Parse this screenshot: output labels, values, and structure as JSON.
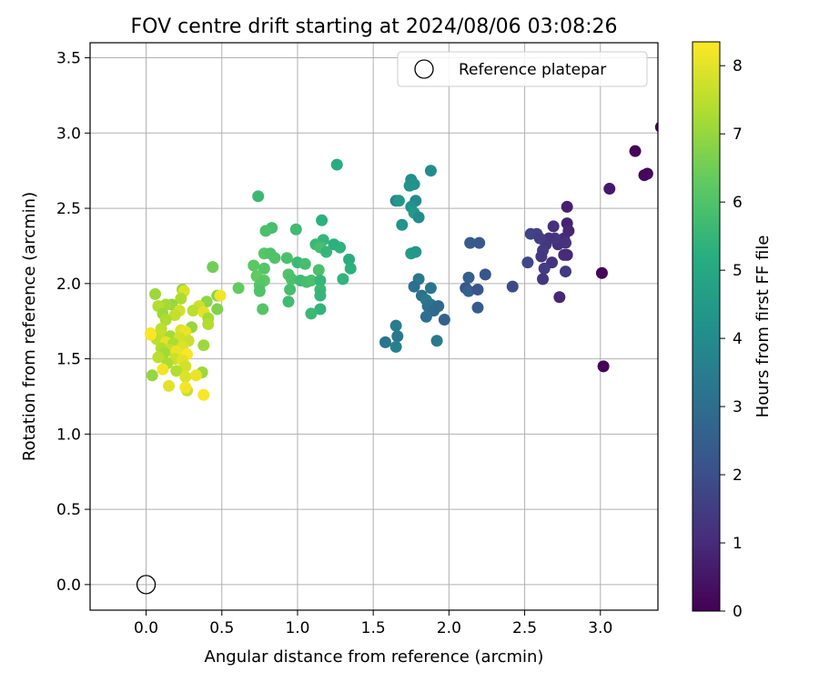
{
  "chart_data": {
    "type": "scatter",
    "title": "FOV centre drift starting at 2024/08/06 03:08:26",
    "xlabel": "Angular distance from reference (arcmin)",
    "ylabel": "Rotation from reference (arcmin)",
    "xlim": [
      -0.37,
      3.38
    ],
    "ylim": [
      -0.17,
      3.6
    ],
    "xticks": [
      0.0,
      0.5,
      1.0,
      1.5,
      2.0,
      2.5,
      3.0
    ],
    "yticks": [
      0.0,
      0.5,
      1.0,
      1.5,
      2.0,
      2.5,
      3.0,
      3.5
    ],
    "grid": true,
    "legend": {
      "placement": "top-right",
      "entries": [
        {
          "label": "Reference platepar",
          "marker": "open-circle"
        }
      ]
    },
    "reference_point": {
      "x": 0.0,
      "y": 0.0
    },
    "colorbar": {
      "label": "Hours from first FF file",
      "colormap": "viridis",
      "range": [
        0,
        8.35
      ],
      "ticks": [
        0,
        1,
        2,
        3,
        4,
        5,
        6,
        7,
        8
      ]
    },
    "points": [
      {
        "x": 3.4,
        "y": 3.04,
        "c": 0.05
      },
      {
        "x": 3.23,
        "y": 2.88,
        "c": 0.12
      },
      {
        "x": 3.29,
        "y": 2.72,
        "c": 0.15
      },
      {
        "x": 3.31,
        "y": 2.73,
        "c": 0.18
      },
      {
        "x": 3.06,
        "y": 2.63,
        "c": 0.55
      },
      {
        "x": 3.01,
        "y": 2.07,
        "c": 0.1
      },
      {
        "x": 3.02,
        "y": 1.45,
        "c": 0.1
      },
      {
        "x": 2.78,
        "y": 2.51,
        "c": 0.7
      },
      {
        "x": 2.78,
        "y": 2.4,
        "c": 0.8
      },
      {
        "x": 2.79,
        "y": 2.35,
        "c": 0.9
      },
      {
        "x": 2.76,
        "y": 2.3,
        "c": 1.0
      },
      {
        "x": 2.72,
        "y": 2.26,
        "c": 1.1
      },
      {
        "x": 2.78,
        "y": 2.19,
        "c": 0.9
      },
      {
        "x": 2.76,
        "y": 2.19,
        "c": 1.0
      },
      {
        "x": 2.77,
        "y": 2.27,
        "c": 1.2
      },
      {
        "x": 2.69,
        "y": 2.38,
        "c": 1.1
      },
      {
        "x": 2.7,
        "y": 2.3,
        "c": 1.3
      },
      {
        "x": 2.66,
        "y": 2.3,
        "c": 1.2
      },
      {
        "x": 2.64,
        "y": 2.26,
        "c": 1.3
      },
      {
        "x": 2.62,
        "y": 2.22,
        "c": 1.4
      },
      {
        "x": 2.61,
        "y": 2.18,
        "c": 1.3
      },
      {
        "x": 2.68,
        "y": 2.14,
        "c": 1.2
      },
      {
        "x": 2.63,
        "y": 2.1,
        "c": 1.5
      },
      {
        "x": 2.77,
        "y": 2.08,
        "c": 1.4
      },
      {
        "x": 2.62,
        "y": 2.03,
        "c": 1.3
      },
      {
        "x": 2.73,
        "y": 1.91,
        "c": 0.9
      },
      {
        "x": 2.58,
        "y": 2.33,
        "c": 1.6
      },
      {
        "x": 2.54,
        "y": 2.33,
        "c": 1.7
      },
      {
        "x": 2.6,
        "y": 2.3,
        "c": 1.5
      },
      {
        "x": 2.52,
        "y": 2.14,
        "c": 1.8
      },
      {
        "x": 2.42,
        "y": 1.98,
        "c": 1.9
      },
      {
        "x": 2.14,
        "y": 2.27,
        "c": 2.4
      },
      {
        "x": 2.2,
        "y": 2.27,
        "c": 2.3
      },
      {
        "x": 2.24,
        "y": 2.06,
        "c": 2.2
      },
      {
        "x": 2.13,
        "y": 2.04,
        "c": 2.5
      },
      {
        "x": 2.11,
        "y": 1.97,
        "c": 2.1
      },
      {
        "x": 2.13,
        "y": 1.95,
        "c": 2.6
      },
      {
        "x": 2.19,
        "y": 1.96,
        "c": 2.2
      },
      {
        "x": 2.19,
        "y": 1.84,
        "c": 2.4
      },
      {
        "x": 1.88,
        "y": 2.75,
        "c": 4.0
      },
      {
        "x": 1.75,
        "y": 2.69,
        "c": 4.1
      },
      {
        "x": 1.77,
        "y": 2.66,
        "c": 4.2
      },
      {
        "x": 1.74,
        "y": 2.65,
        "c": 4.3
      },
      {
        "x": 1.65,
        "y": 2.55,
        "c": 3.8
      },
      {
        "x": 1.67,
        "y": 2.55,
        "c": 4.4
      },
      {
        "x": 1.78,
        "y": 2.55,
        "c": 3.9
      },
      {
        "x": 1.75,
        "y": 2.51,
        "c": 4.2
      },
      {
        "x": 1.77,
        "y": 2.47,
        "c": 4.5
      },
      {
        "x": 1.8,
        "y": 2.44,
        "c": 4.0
      },
      {
        "x": 1.69,
        "y": 2.39,
        "c": 4.3
      },
      {
        "x": 1.75,
        "y": 2.2,
        "c": 4.6
      },
      {
        "x": 1.78,
        "y": 2.21,
        "c": 4.4
      },
      {
        "x": 1.8,
        "y": 2.03,
        "c": 3.3
      },
      {
        "x": 1.77,
        "y": 1.98,
        "c": 3.0
      },
      {
        "x": 1.88,
        "y": 1.97,
        "c": 3.2
      },
      {
        "x": 1.82,
        "y": 1.92,
        "c": 3.1
      },
      {
        "x": 1.85,
        "y": 1.89,
        "c": 3.4
      },
      {
        "x": 1.88,
        "y": 1.86,
        "c": 3.3
      },
      {
        "x": 1.86,
        "y": 1.85,
        "c": 3.1
      },
      {
        "x": 1.9,
        "y": 1.82,
        "c": 2.9
      },
      {
        "x": 1.93,
        "y": 1.85,
        "c": 2.8
      },
      {
        "x": 1.85,
        "y": 1.78,
        "c": 3.0
      },
      {
        "x": 1.97,
        "y": 1.76,
        "c": 2.6
      },
      {
        "x": 1.92,
        "y": 1.62,
        "c": 3.4
      },
      {
        "x": 1.65,
        "y": 1.72,
        "c": 3.5
      },
      {
        "x": 1.66,
        "y": 1.65,
        "c": 3.3
      },
      {
        "x": 1.58,
        "y": 1.61,
        "c": 3.2
      },
      {
        "x": 1.65,
        "y": 1.58,
        "c": 3.6
      },
      {
        "x": 1.26,
        "y": 2.79,
        "c": 5.2
      },
      {
        "x": 0.74,
        "y": 2.58,
        "c": 5.6
      },
      {
        "x": 1.16,
        "y": 2.42,
        "c": 5.3
      },
      {
        "x": 0.83,
        "y": 2.37,
        "c": 5.8
      },
      {
        "x": 0.79,
        "y": 2.35,
        "c": 5.9
      },
      {
        "x": 0.99,
        "y": 2.36,
        "c": 5.7
      },
      {
        "x": 1.17,
        "y": 2.29,
        "c": 5.5
      },
      {
        "x": 1.28,
        "y": 2.24,
        "c": 5.4
      },
      {
        "x": 1.12,
        "y": 2.26,
        "c": 5.6
      },
      {
        "x": 1.24,
        "y": 2.26,
        "c": 5.3
      },
      {
        "x": 1.15,
        "y": 2.24,
        "c": 5.8
      },
      {
        "x": 1.19,
        "y": 2.21,
        "c": 5.5
      },
      {
        "x": 0.78,
        "y": 2.2,
        "c": 6.1
      },
      {
        "x": 0.82,
        "y": 2.2,
        "c": 6.0
      },
      {
        "x": 0.93,
        "y": 2.17,
        "c": 5.9
      },
      {
        "x": 0.85,
        "y": 2.17,
        "c": 6.0
      },
      {
        "x": 1.0,
        "y": 2.14,
        "c": 5.6
      },
      {
        "x": 1.05,
        "y": 2.13,
        "c": 5.8
      },
      {
        "x": 1.34,
        "y": 2.16,
        "c": 5.2
      },
      {
        "x": 1.35,
        "y": 2.1,
        "c": 5.3
      },
      {
        "x": 0.71,
        "y": 2.12,
        "c": 6.2
      },
      {
        "x": 0.78,
        "y": 2.1,
        "c": 6.1
      },
      {
        "x": 1.14,
        "y": 2.09,
        "c": 5.9
      },
      {
        "x": 0.94,
        "y": 2.06,
        "c": 6.0
      },
      {
        "x": 0.73,
        "y": 2.05,
        "c": 6.3
      },
      {
        "x": 0.96,
        "y": 2.03,
        "c": 5.9
      },
      {
        "x": 0.78,
        "y": 2.02,
        "c": 6.2
      },
      {
        "x": 1.02,
        "y": 2.02,
        "c": 5.7
      },
      {
        "x": 1.06,
        "y": 2.01,
        "c": 5.8
      },
      {
        "x": 1.09,
        "y": 2.02,
        "c": 5.9
      },
      {
        "x": 1.3,
        "y": 2.03,
        "c": 5.4
      },
      {
        "x": 1.15,
        "y": 2.02,
        "c": 5.5
      },
      {
        "x": 0.75,
        "y": 1.99,
        "c": 6.1
      },
      {
        "x": 0.61,
        "y": 1.97,
        "c": 6.3
      },
      {
        "x": 0.75,
        "y": 1.95,
        "c": 6.0
      },
      {
        "x": 0.95,
        "y": 1.96,
        "c": 5.8
      },
      {
        "x": 1.15,
        "y": 1.96,
        "c": 5.6
      },
      {
        "x": 1.15,
        "y": 1.92,
        "c": 5.5
      },
      {
        "x": 0.94,
        "y": 1.88,
        "c": 5.7
      },
      {
        "x": 1.15,
        "y": 1.83,
        "c": 5.4
      },
      {
        "x": 0.77,
        "y": 1.83,
        "c": 6.1
      },
      {
        "x": 1.09,
        "y": 1.8,
        "c": 5.6
      },
      {
        "x": 0.44,
        "y": 2.11,
        "c": 6.5
      },
      {
        "x": 0.24,
        "y": 1.96,
        "c": 7.0
      },
      {
        "x": 0.25,
        "y": 1.95,
        "c": 7.9
      },
      {
        "x": 0.06,
        "y": 1.93,
        "c": 7.1
      },
      {
        "x": 0.47,
        "y": 1.92,
        "c": 6.8
      },
      {
        "x": 0.49,
        "y": 1.92,
        "c": 8.2
      },
      {
        "x": 0.23,
        "y": 1.9,
        "c": 7.3
      },
      {
        "x": 0.4,
        "y": 1.88,
        "c": 6.9
      },
      {
        "x": 0.17,
        "y": 1.86,
        "c": 7.0
      },
      {
        "x": 0.13,
        "y": 1.86,
        "c": 7.2
      },
      {
        "x": 0.08,
        "y": 1.85,
        "c": 7.4
      },
      {
        "x": 0.35,
        "y": 1.85,
        "c": 7.7
      },
      {
        "x": 0.47,
        "y": 1.83,
        "c": 6.7
      },
      {
        "x": 0.22,
        "y": 1.82,
        "c": 7.8
      },
      {
        "x": 0.31,
        "y": 1.82,
        "c": 7.5
      },
      {
        "x": 0.38,
        "y": 1.81,
        "c": 8.0
      },
      {
        "x": 0.11,
        "y": 1.8,
        "c": 7.1
      },
      {
        "x": 0.19,
        "y": 1.79,
        "c": 7.6
      },
      {
        "x": 0.41,
        "y": 1.77,
        "c": 7.2
      },
      {
        "x": 0.13,
        "y": 1.76,
        "c": 7.3
      },
      {
        "x": 0.41,
        "y": 1.73,
        "c": 7.4
      },
      {
        "x": 0.3,
        "y": 1.71,
        "c": 7.0
      },
      {
        "x": 0.1,
        "y": 1.7,
        "c": 7.5
      },
      {
        "x": 0.23,
        "y": 1.69,
        "c": 7.9
      },
      {
        "x": 0.26,
        "y": 1.68,
        "c": 8.1
      },
      {
        "x": 0.03,
        "y": 1.67,
        "c": 8.2
      },
      {
        "x": 0.09,
        "y": 1.66,
        "c": 7.6
      },
      {
        "x": 0.16,
        "y": 1.65,
        "c": 7.2
      },
      {
        "x": 0.22,
        "y": 1.64,
        "c": 7.8
      },
      {
        "x": 0.07,
        "y": 1.63,
        "c": 7.5
      },
      {
        "x": 0.28,
        "y": 1.62,
        "c": 7.7
      },
      {
        "x": 0.13,
        "y": 1.61,
        "c": 8.0
      },
      {
        "x": 0.18,
        "y": 1.6,
        "c": 7.3
      },
      {
        "x": 0.38,
        "y": 1.59,
        "c": 7.1
      },
      {
        "x": 0.24,
        "y": 1.58,
        "c": 7.9
      },
      {
        "x": 0.1,
        "y": 1.57,
        "c": 7.4
      },
      {
        "x": 0.16,
        "y": 1.56,
        "c": 7.6
      },
      {
        "x": 0.2,
        "y": 1.55,
        "c": 8.1
      },
      {
        "x": 0.12,
        "y": 1.54,
        "c": 7.2
      },
      {
        "x": 0.27,
        "y": 1.53,
        "c": 8.3
      },
      {
        "x": 0.08,
        "y": 1.51,
        "c": 7.5
      },
      {
        "x": 0.19,
        "y": 1.5,
        "c": 7.7
      },
      {
        "x": 0.24,
        "y": 1.49,
        "c": 8.0
      },
      {
        "x": 0.14,
        "y": 1.47,
        "c": 7.3
      },
      {
        "x": 0.26,
        "y": 1.45,
        "c": 7.8
      },
      {
        "x": 0.11,
        "y": 1.43,
        "c": 8.2
      },
      {
        "x": 0.2,
        "y": 1.42,
        "c": 7.4
      },
      {
        "x": 0.37,
        "y": 1.41,
        "c": 7.1
      },
      {
        "x": 0.04,
        "y": 1.39,
        "c": 7.0
      },
      {
        "x": 0.26,
        "y": 1.38,
        "c": 7.9
      },
      {
        "x": 0.33,
        "y": 1.39,
        "c": 8.1
      },
      {
        "x": 0.15,
        "y": 1.32,
        "c": 8.0
      },
      {
        "x": 0.27,
        "y": 1.29,
        "c": 7.6
      },
      {
        "x": 0.26,
        "y": 1.31,
        "c": 8.2
      },
      {
        "x": 0.38,
        "y": 1.26,
        "c": 8.3
      },
      {
        "x": 0.03,
        "y": 1.66,
        "c": 8.3
      }
    ]
  }
}
